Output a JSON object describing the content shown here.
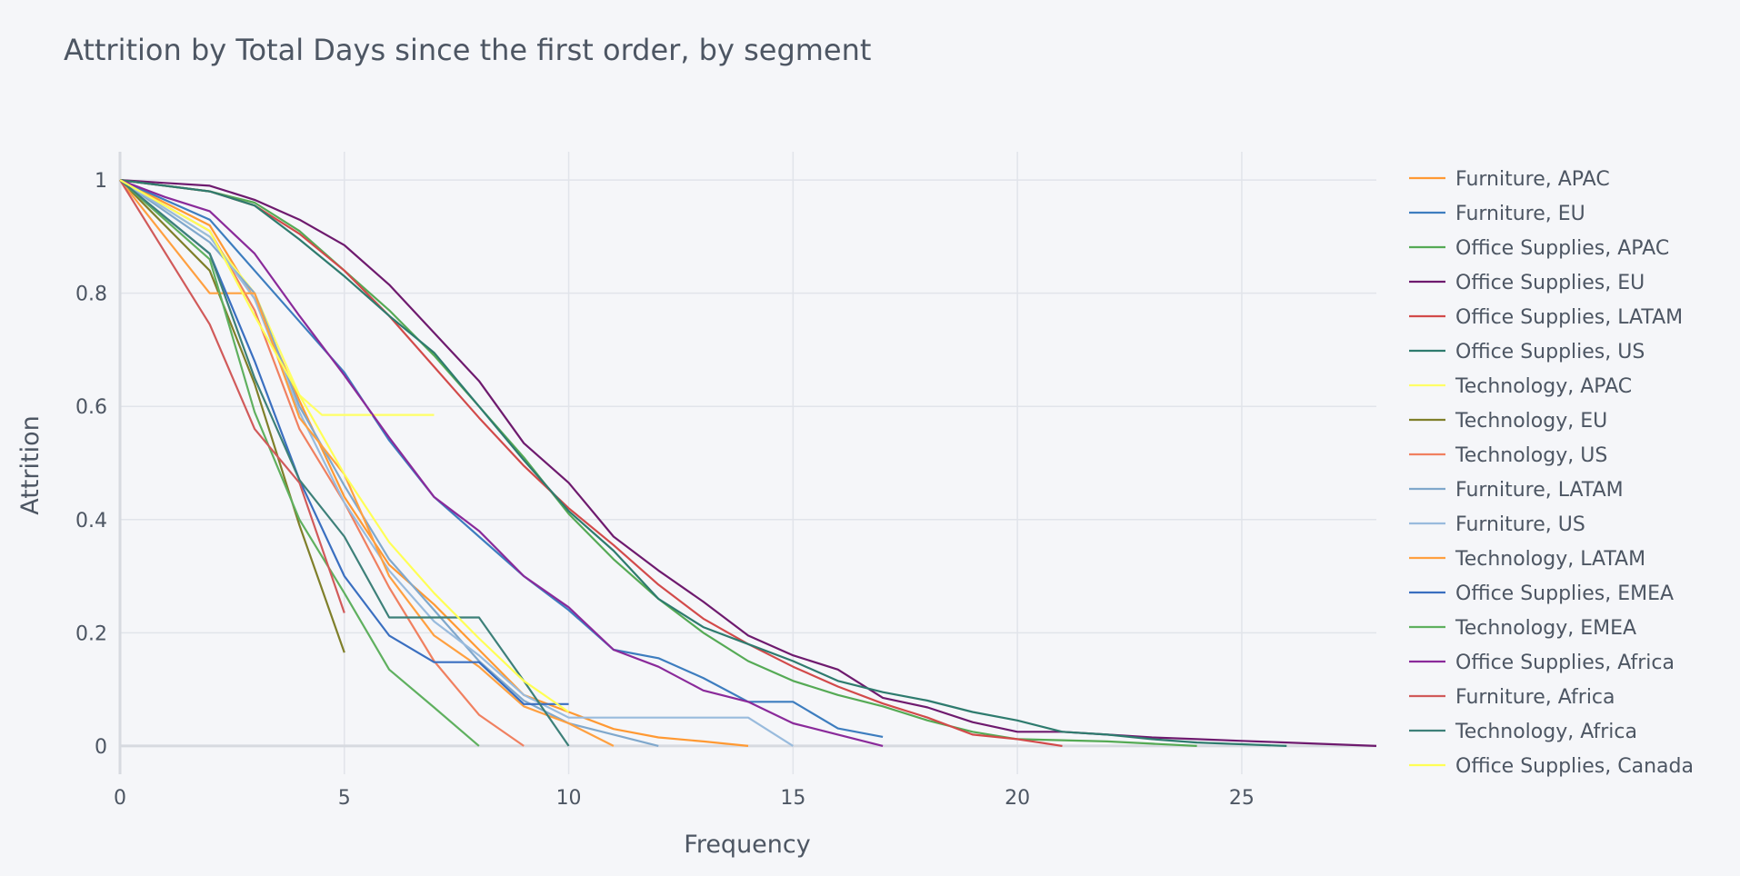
{
  "chart_data": {
    "type": "line",
    "title": "Attrition by Total Days since the first order, by segment",
    "xlabel": "Frequency",
    "ylabel": "Attrition",
    "xlim": [
      0,
      28
    ],
    "ylim": [
      -0.05,
      1.05
    ],
    "x_ticks": [
      0,
      5,
      10,
      15,
      20,
      25
    ],
    "y_ticks": [
      0,
      0.2,
      0.4,
      0.6,
      0.8,
      1
    ],
    "x_tick_labels": [
      "0",
      "5",
      "10",
      "15",
      "20",
      "25"
    ],
    "y_tick_labels": [
      "0",
      "0.2",
      "0.4",
      "0.6",
      "0.8",
      "1"
    ],
    "grid": true,
    "legend_position": "right",
    "series": [
      {
        "name": "Furniture, APAC",
        "color": "#ff9933",
        "x": [
          0,
          2,
          3,
          4,
          5,
          6,
          7,
          8,
          9,
          10,
          11,
          12,
          13,
          14
        ],
        "y": [
          1,
          0.92,
          0.79,
          0.61,
          0.44,
          0.32,
          0.25,
          0.17,
          0.09,
          0.06,
          0.03,
          0.015,
          0.008,
          0
        ]
      },
      {
        "name": "Furniture, EU",
        "color": "#3d7dbf",
        "x": [
          0,
          2,
          3,
          4,
          5,
          6,
          7,
          8,
          9,
          10,
          11,
          12,
          13,
          14,
          15,
          16,
          17
        ],
        "y": [
          1,
          0.93,
          0.84,
          0.75,
          0.66,
          0.54,
          0.44,
          0.37,
          0.3,
          0.24,
          0.17,
          0.155,
          0.12,
          0.078,
          0.078,
          0.031,
          0.016
        ]
      },
      {
        "name": "Office Supplies, APAC",
        "color": "#55aa55",
        "x": [
          0,
          1,
          2,
          3,
          4,
          5,
          6,
          7,
          8,
          9,
          10,
          11,
          12,
          13,
          14,
          15,
          16,
          17,
          18,
          19,
          20,
          21,
          22,
          23,
          24
        ],
        "y": [
          1,
          0.99,
          0.98,
          0.96,
          0.91,
          0.84,
          0.77,
          0.69,
          0.6,
          0.51,
          0.41,
          0.33,
          0.26,
          0.2,
          0.15,
          0.115,
          0.09,
          0.07,
          0.045,
          0.025,
          0.012,
          0.01,
          0.008,
          0.004,
          0
        ]
      },
      {
        "name": "Office Supplies, EU",
        "color": "#6e1a6e",
        "x": [
          0,
          1,
          2,
          3,
          4,
          5,
          6,
          7,
          8,
          9,
          10,
          11,
          12,
          13,
          14,
          15,
          16,
          17,
          18,
          19,
          20,
          21,
          22,
          23,
          24,
          25,
          26,
          27,
          28
        ],
        "y": [
          1,
          0.995,
          0.99,
          0.965,
          0.93,
          0.885,
          0.815,
          0.73,
          0.645,
          0.535,
          0.465,
          0.37,
          0.31,
          0.255,
          0.195,
          0.16,
          0.135,
          0.085,
          0.068,
          0.042,
          0.025,
          0.025,
          0.02,
          0.015,
          0.012,
          0.009,
          0.006,
          0.003,
          0
        ]
      },
      {
        "name": "Office Supplies, LATAM",
        "color": "#d24a4a",
        "x": [
          0,
          1,
          2,
          3,
          4,
          5,
          6,
          7,
          8,
          9,
          10,
          11,
          12,
          13,
          14,
          15,
          16,
          17,
          18,
          19,
          20,
          21
        ],
        "y": [
          1,
          0.99,
          0.98,
          0.955,
          0.905,
          0.84,
          0.76,
          0.67,
          0.58,
          0.495,
          0.42,
          0.355,
          0.285,
          0.225,
          0.18,
          0.14,
          0.105,
          0.075,
          0.05,
          0.02,
          0.012,
          0
        ]
      },
      {
        "name": "Office Supplies, US",
        "color": "#2e7b6e",
        "x": [
          0,
          1,
          2,
          3,
          4,
          5,
          6,
          7,
          8,
          9,
          10,
          11,
          12,
          13,
          14,
          15,
          16,
          17,
          18,
          19,
          20,
          21,
          22,
          23,
          24,
          25,
          26
        ],
        "y": [
          1,
          0.99,
          0.98,
          0.955,
          0.895,
          0.83,
          0.76,
          0.695,
          0.6,
          0.505,
          0.415,
          0.345,
          0.26,
          0.21,
          0.18,
          0.15,
          0.115,
          0.095,
          0.08,
          0.06,
          0.045,
          0.025,
          0.02,
          0.012,
          0.006,
          0.003,
          0
        ]
      },
      {
        "name": "Technology, APAC",
        "color": "#ffff66",
        "x": [
          0,
          2,
          3,
          4,
          4.5,
          5,
          6,
          7
        ],
        "y": [
          1,
          0.9,
          0.8,
          0.62,
          0.585,
          0.585,
          0.585,
          0.585
        ]
      },
      {
        "name": "Technology, EU",
        "color": "#7f7f2a",
        "x": [
          0,
          2,
          3,
          4,
          5
        ],
        "y": [
          1,
          0.84,
          0.64,
          0.39,
          0.165
        ]
      },
      {
        "name": "Technology, US",
        "color": "#f08060",
        "x": [
          0,
          2,
          3,
          4,
          5,
          6,
          7,
          8,
          9
        ],
        "y": [
          1,
          0.91,
          0.77,
          0.56,
          0.43,
          0.28,
          0.15,
          0.055,
          0
        ]
      },
      {
        "name": "Furniture, LATAM",
        "color": "#80a8cc",
        "x": [
          0,
          2,
          3,
          4,
          5,
          6,
          7,
          8,
          9,
          10,
          11,
          12
        ],
        "y": [
          1,
          0.89,
          0.8,
          0.6,
          0.46,
          0.33,
          0.24,
          0.15,
          0.08,
          0.04,
          0.02,
          0
        ]
      },
      {
        "name": "Furniture, US",
        "color": "#99bbdd",
        "x": [
          0,
          2,
          3,
          4,
          5,
          6,
          7,
          8,
          9,
          10,
          11,
          12,
          13,
          14,
          15
        ],
        "y": [
          1,
          0.9,
          0.79,
          0.59,
          0.43,
          0.31,
          0.22,
          0.16,
          0.09,
          0.05,
          0.05,
          0.05,
          0.05,
          0.05,
          0
        ]
      },
      {
        "name": "Technology, LATAM",
        "color": "#ffa040",
        "x": [
          0,
          2,
          2.5,
          3,
          4,
          5,
          6,
          7,
          8,
          9,
          10,
          11
        ],
        "y": [
          1,
          0.8,
          0.8,
          0.8,
          0.58,
          0.48,
          0.3,
          0.195,
          0.14,
          0.07,
          0.04,
          0
        ]
      },
      {
        "name": "Office Supplies, EMEA",
        "color": "#3a6fc0",
        "x": [
          0,
          2,
          3,
          4,
          5,
          6,
          7,
          8,
          9,
          10
        ],
        "y": [
          1,
          0.87,
          0.68,
          0.47,
          0.3,
          0.195,
          0.148,
          0.148,
          0.074,
          0.074
        ]
      },
      {
        "name": "Technology, EMEA",
        "color": "#5fb05f",
        "x": [
          0,
          2,
          3,
          4,
          5,
          6,
          7,
          8
        ],
        "y": [
          1,
          0.86,
          0.59,
          0.4,
          0.27,
          0.135,
          0.068,
          0
        ]
      },
      {
        "name": "Office Supplies, Africa",
        "color": "#8a2a9a",
        "x": [
          0,
          1,
          2,
          3,
          4,
          5,
          6,
          7,
          8,
          9,
          10,
          11,
          12,
          13,
          14,
          15,
          16,
          17
        ],
        "y": [
          1,
          0.97,
          0.945,
          0.87,
          0.76,
          0.655,
          0.545,
          0.44,
          0.38,
          0.3,
          0.245,
          0.17,
          0.14,
          0.098,
          0.078,
          0.04,
          0.02,
          0
        ]
      },
      {
        "name": "Furniture, Africa",
        "color": "#d15a5a",
        "x": [
          0,
          2,
          3,
          4,
          5
        ],
        "y": [
          1,
          0.745,
          0.56,
          0.465,
          0.235
        ]
      },
      {
        "name": "Technology, Africa",
        "color": "#3d8079",
        "x": [
          0,
          2,
          3,
          4,
          5,
          6,
          7,
          8,
          9,
          10
        ],
        "y": [
          1,
          0.87,
          0.65,
          0.47,
          0.37,
          0.227,
          0.227,
          0.227,
          0.115,
          0
        ]
      },
      {
        "name": "Office Supplies, Canada",
        "color": "#ffff55",
        "x": [
          0,
          2,
          3,
          4,
          5,
          6,
          7,
          8,
          9,
          10
        ],
        "y": [
          1,
          0.91,
          0.76,
          0.62,
          0.48,
          0.36,
          0.27,
          0.19,
          0.115,
          0.06
        ]
      }
    ]
  }
}
